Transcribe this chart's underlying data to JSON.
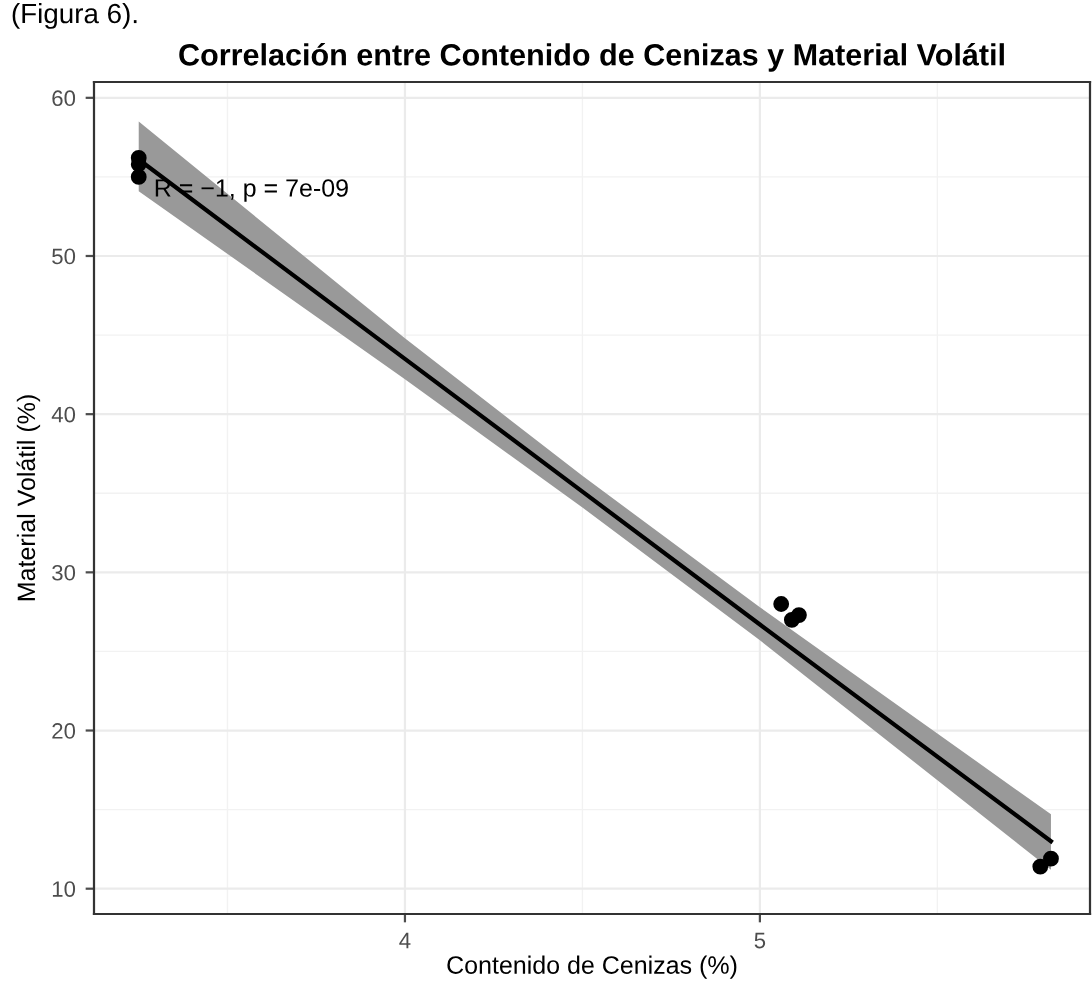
{
  "chart_data": {
    "type": "scatter",
    "title": "Correlación entre Contenido de Cenizas y Material Volátil",
    "xlabel": "Contenido de Cenizas (%)",
    "ylabel": "Material Volátil (%)",
    "annotations": [
      "R = −1, p = 7e-09",
      "(Figura 6)."
    ],
    "series": [
      {
        "marker": "circle",
        "color": "#000000",
        "x": [
          3.25,
          3.25,
          3.25,
          5.06,
          5.09,
          5.11,
          5.79,
          5.82
        ],
        "values": [
          56.2,
          55.8,
          55.0,
          28.0,
          27.0,
          27.3,
          11.4,
          11.9
        ]
      },
      {
        "type": "line",
        "marker": "none",
        "color": "#000000",
        "x": [
          3.25,
          4.0,
          4.5,
          5.0,
          5.82
        ],
        "values": [
          56.1,
          43.5,
          35.1,
          26.7,
          13.0
        ],
        "lower": [
          54.1,
          42.2,
          34.1,
          25.7,
          11.2
        ],
        "upper": [
          58.5,
          44.8,
          36.1,
          27.8,
          14.7
        ]
      }
    ],
    "xlim": [
      3.124,
      5.93
    ],
    "ylim": [
      8.4,
      61.0
    ],
    "xticks": [
      4,
      5
    ],
    "yticks": [
      10,
      20,
      30,
      40,
      50,
      60
    ],
    "grid": true
  }
}
